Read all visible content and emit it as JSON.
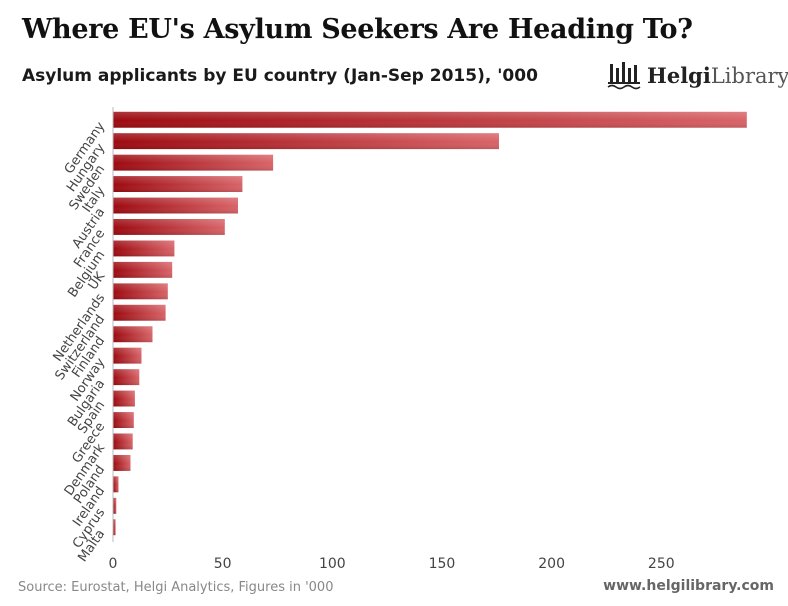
{
  "header": {
    "title": "Where EU's Asylum Seekers Are Heading To?",
    "subtitle": "Asylum applicants by EU country (Jan-Sep 2015), '000"
  },
  "logo": {
    "text_bold": "Helgi",
    "text_light": "Library",
    "icon": "library-columns-icon"
  },
  "footer": {
    "source": "Source: Eurostat, Helgi Analytics, Figures in '000",
    "website": "www.helgilibrary.com"
  },
  "colors": {
    "bar_dark": "#9c0a10",
    "bar_light": "#d86468",
    "axis": "#bbbbbb",
    "tick_text": "#444444"
  },
  "chart_data": {
    "type": "bar",
    "orientation": "horizontal",
    "title": "Asylum applicants by EU country (Jan-Sep 2015), '000",
    "xlabel": "",
    "ylabel": "",
    "xlim": [
      0,
      290
    ],
    "xticks": [
      0,
      50,
      100,
      150,
      200,
      250
    ],
    "grid": false,
    "categories": [
      "Germany",
      "Hungary",
      "Sweden",
      "Italy",
      "Austria",
      "France",
      "Belgium",
      "UK",
      "Netherlands",
      "Switzerland",
      "Finland",
      "Norway",
      "Bulgaria",
      "Spain",
      "Greece",
      "Denmark",
      "Poland",
      "Ireland",
      "Cyprus",
      "Malta"
    ],
    "values": [
      289,
      176,
      73,
      59,
      57,
      51,
      28,
      27,
      25,
      24,
      18,
      13,
      12,
      10,
      9.5,
      9,
      8,
      2.5,
      1.5,
      1.2
    ]
  }
}
